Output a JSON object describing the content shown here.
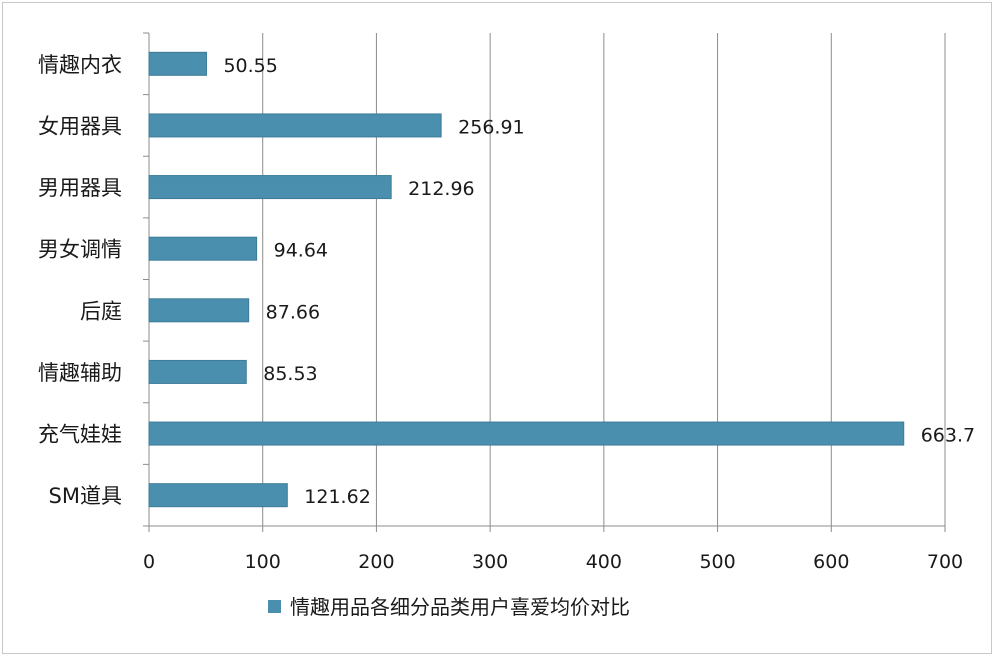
{
  "chart_data": {
    "type": "bar",
    "orientation": "horizontal",
    "categories": [
      "情趣内衣",
      "女用器具",
      "男用器具",
      "男女调情",
      "后庭",
      "情趣辅助",
      "充气娃娃",
      "SM道具"
    ],
    "series": [
      {
        "name": "情趣用品各细分品类用户喜爱均价对比",
        "values": [
          50.55,
          256.91,
          212.96,
          94.64,
          87.66,
          85.53,
          663.7,
          121.62
        ],
        "value_labels": [
          "50.55",
          "256.91",
          "212.96",
          "94.64",
          "87.66",
          "85.53",
          "663.7",
          "121.62"
        ]
      }
    ],
    "title": "",
    "xlabel": "",
    "ylabel": "",
    "xlim": [
      0,
      700
    ],
    "x_ticks": [
      0,
      100,
      200,
      300,
      400,
      500,
      600,
      700
    ],
    "x_tick_labels": [
      "0",
      "100",
      "200",
      "300",
      "400",
      "500",
      "600",
      "700"
    ],
    "grid": true,
    "legend_position": "bottom",
    "colors": {
      "bar": "#4a8fae",
      "bar_stroke": "#3d7c98",
      "grid": "#8c8c8c",
      "axis": "#8c8c8c"
    }
  }
}
